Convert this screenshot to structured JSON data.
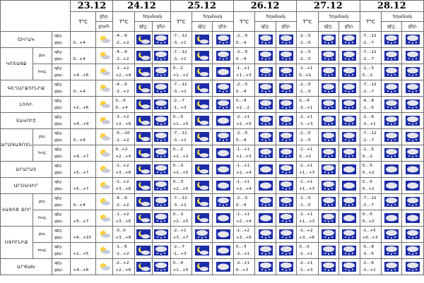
{
  "header": {
    "dates": [
      "23.12",
      "24.12",
      "25.12",
      "26.12",
      "27.12",
      "28.12"
    ],
    "temp_label": "T°C",
    "day_label": "ցեր.",
    "prec_label": "եղանակ",
    "night_label": "գիշ.",
    "col_prec_label": "լրահ."
  },
  "colors": {
    "border": "#6e6e6e",
    "icon_bg": "#1c2ca8",
    "moon": "#f2e24a",
    "sun": "#ffcf33",
    "cloud": "#e6e6ec"
  },
  "regions": [
    {
      "name": "ՇԻՐԱԿ",
      "rows": [
        {
          "sub": "",
          "pp": [
            "գիշ.",
            "ցեր."
          ],
          "d23": "0...+4",
          "i23": "sun-cloud",
          "t": [
            [
              "-4...-9",
              "-2...+2"
            ],
            [
              "-7...-12",
              "-3...+1"
            ],
            [
              "-2...-5",
              "0...-4"
            ],
            [
              "-2...-5",
              "-1...-5"
            ],
            [
              "-7...-12",
              "-2...-7"
            ]
          ],
          "i": [
            [
              "moon-cloud",
              "cloud-snow"
            ],
            [
              "moon-cloud",
              "cloud-snow"
            ],
            [
              "cloud-snow",
              "cloud-snow"
            ],
            [
              "cloud-snow",
              "cloud-snow"
            ],
            [
              "cloud-snow",
              "cloud-snow"
            ]
          ]
        }
      ]
    },
    {
      "name": "ԿՈՏԱՅՔ",
      "rows": [
        {
          "sub": "լեռ.",
          "pp": [
            "գիշ.",
            "ցեր."
          ],
          "d23": "0...+4",
          "i23": "sun-cloud",
          "t": [
            [
              "-4...-9",
              "-2...+2"
            ],
            [
              "-7...-12",
              "-3...+1"
            ],
            [
              "-2...-5",
              "0...-4"
            ],
            [
              "-2...-5",
              "-1...-5"
            ],
            [
              "-7...-12",
              "-2...-7"
            ]
          ],
          "i": [
            [
              "moon-cloud",
              "cloud-snow"
            ],
            [
              "moon-cloud",
              "cloud-snow"
            ],
            [
              "cloud-snow",
              "cloud-snow"
            ],
            [
              "cloud-snow",
              "cloud-snow"
            ],
            [
              "cloud-snow",
              "cloud-snow"
            ]
          ]
        },
        {
          "sub": "հով.",
          "pp": [
            "գիշ.",
            "ցեր."
          ],
          "d23": "+4...+6",
          "i23": "sun-cloud",
          "t": [
            [
              "-1...+2",
              "+2...+4"
            ],
            [
              "0...-2",
              "+1...+2"
            ],
            [
              "-1...+1",
              "+1...+3"
            ],
            [
              "-1...+1",
              "0...+1"
            ],
            [
              "-1...-5",
              "0...-2"
            ]
          ],
          "i": [
            [
              "moon-cloud",
              "cloud-snow"
            ],
            [
              "moon-cloud",
              "cloud"
            ],
            [
              "cloud-snow",
              "cloud-snow"
            ],
            [
              "cloud-snow",
              "cloud-snow"
            ],
            [
              "cloud-snow",
              "cloud-snow"
            ]
          ]
        }
      ]
    },
    {
      "name": "ԳԵՂԱՐՔՈՒՆԻՔ",
      "rows": [
        {
          "sub": "",
          "pp": [
            "գիշ.",
            "ցեր."
          ],
          "d23": "0...+4",
          "i23": "sun-cloud",
          "t": [
            [
              "-4...-9",
              "-2...+2"
            ],
            [
              "-7...-12",
              "-3...+1"
            ],
            [
              "-2...-5",
              "0...-4"
            ],
            [
              "-2...-5",
              "-1...-5"
            ],
            [
              "-7...-12",
              "-2...-7"
            ]
          ],
          "i": [
            [
              "moon-cloud",
              "cloud-snow"
            ],
            [
              "moon-cloud",
              "cloud-snow"
            ],
            [
              "cloud-snow",
              "cloud-snow"
            ],
            [
              "cloud-snow",
              "cloud-snow"
            ],
            [
              "cloud-snow",
              "cloud-snow"
            ]
          ]
        }
      ]
    },
    {
      "name": "ԼՈՌԻ",
      "rows": [
        {
          "sub": "",
          "pp": [
            "գիշ.",
            "ցեր."
          ],
          "d23": "+2...+6",
          "i23": "sun-cloud",
          "t": [
            [
              "0...-5",
              "0...+4"
            ],
            [
              "-2...-7",
              "-1...+3"
            ],
            [
              "0...-4",
              "+2...-2"
            ],
            [
              "0...-4",
              "-3...+1"
            ],
            [
              "-4...-8",
              "-1...-5"
            ]
          ],
          "i": [
            [
              "moon-cloud",
              "cloud-snow"
            ],
            [
              "moon-cloud",
              "cloud-snow"
            ],
            [
              "cloud-snow",
              "cloud-snow"
            ],
            [
              "cloud-snow",
              "cloud-snow"
            ],
            [
              "cloud-snow",
              "cloud-snow"
            ]
          ]
        }
      ]
    },
    {
      "name": "ՏԱՎՈՒՇ",
      "rows": [
        {
          "sub": "",
          "pp": [
            "գիշ.",
            "ցեր."
          ],
          "d23": "+4...+9",
          "i23": "sun-cloud",
          "t": [
            [
              "-3...+2",
              "+2...+6"
            ],
            [
              "0...-5",
              "+1...+5"
            ],
            [
              "-2...+1",
              "+2...+5"
            ],
            [
              "-2...+1",
              "-1...+3"
            ],
            [
              "-2...-6",
              "-3...+1"
            ]
          ],
          "i": [
            [
              "moon-cloud",
              "cloud-snow"
            ],
            [
              "moon-cloud",
              "cloud"
            ],
            [
              "cloud-snow",
              "cloud-snow"
            ],
            [
              "cloud-snow",
              "cloud-snow"
            ],
            [
              "cloud-snow",
              "cloud-snow"
            ]
          ]
        }
      ]
    },
    {
      "name": "ԱՐԱԳԱՑՈՏՆ",
      "rows": [
        {
          "sub": "լեռ.",
          "pp": [
            "գիշ.",
            "ցեր."
          ],
          "d23": "0...+4",
          "i23": "sun-cloud",
          "t": [
            [
              "-5...-10",
              "-2...+2"
            ],
            [
              "-7...-12",
              "-3...+1"
            ],
            [
              "-2...-5",
              "0...-4"
            ],
            [
              "-2...-5",
              "-1...-5"
            ],
            [
              "-7...-12",
              "-2...-7"
            ]
          ],
          "i": [
            [
              "moon-cloud",
              "cloud-snow"
            ],
            [
              "moon-cloud",
              "cloud-snow"
            ],
            [
              "cloud-snow",
              "cloud-snow"
            ],
            [
              "cloud-snow",
              "cloud-snow"
            ],
            [
              "cloud-snow",
              "cloud-snow"
            ]
          ]
        },
        {
          "sub": "հով.",
          "pp": [
            "գիշ.",
            "ցեր."
          ],
          "d23": "+4...+7",
          "i23": "sun-cloud",
          "t": [
            [
              "0...+2",
              "+2...+4"
            ],
            [
              "0...-2",
              "+1...+2"
            ],
            [
              "-1...+1",
              "+1...+3"
            ],
            [
              "-1...+1",
              "0...+1"
            ],
            [
              "-1...-5",
              "0...-2"
            ]
          ],
          "i": [
            [
              "moon-cloud",
              "cloud-snow"
            ],
            [
              "moon-cloud",
              "cloud"
            ],
            [
              "cloud-snow",
              "cloud-snow"
            ],
            [
              "cloud-snow",
              "cloud-snow"
            ],
            [
              "cloud-snow",
              "cloud-snow"
            ]
          ]
        }
      ]
    },
    {
      "name": "ԱՐԱՐԱՏ",
      "rows": [
        {
          "sub": "",
          "pp": [
            "գիշ.",
            "ցեր."
          ],
          "d23": "+5...+7",
          "i23": "sun-cloud",
          "t": [
            [
              "-1...+2",
              "+3...+6"
            ],
            [
              "0...-3",
              "+2...+5"
            ],
            [
              "-1...+1",
              "+2...+4"
            ],
            [
              "-1...+1",
              "+1...+3"
            ],
            [
              "0...-5",
              "0...+2"
            ]
          ],
          "i": [
            [
              "moon-cloud",
              "cloud-snow"
            ],
            [
              "moon-cloud",
              "cloud"
            ],
            [
              "cloud",
              "cloud-snow"
            ],
            [
              "cloud-snow",
              "cloud"
            ],
            [
              "cloud",
              "cloud"
            ]
          ]
        }
      ]
    },
    {
      "name": "ԱՐՄԱՎԻՐ",
      "rows": [
        {
          "sub": "",
          "pp": [
            "գիշ.",
            "ցեր."
          ],
          "d23": "+5...+7",
          "i23": "sun-cloud",
          "t": [
            [
              "-1...+2",
              "+3...+6"
            ],
            [
              "0...-3",
              "+2...+5"
            ],
            [
              "-1...+1",
              "+2...+4"
            ],
            [
              "-1...+1",
              "+1...+3"
            ],
            [
              "0...-5",
              "0...+2"
            ]
          ],
          "i": [
            [
              "moon-cloud",
              "cloud-snow"
            ],
            [
              "moon-cloud",
              "cloud"
            ],
            [
              "cloud",
              "cloud-snow"
            ],
            [
              "cloud-snow",
              "cloud"
            ],
            [
              "cloud",
              "cloud"
            ]
          ]
        }
      ]
    },
    {
      "name": "ՎԱՅՈՑ ՁՈՐ",
      "rows": [
        {
          "sub": "լեռ.",
          "pp": [
            "գիշ.",
            "ցեր."
          ],
          "d23": "0...+4",
          "i23": "sun-cloud",
          "t": [
            [
              "-4...-9",
              "-2...+2"
            ],
            [
              "-7...-12",
              "-3...+1"
            ],
            [
              "-2...-5",
              "0...-4"
            ],
            [
              "-2...-5",
              "-1...-5"
            ],
            [
              "-7...-12",
              "-2...-7"
            ]
          ],
          "i": [
            [
              "moon-cloud",
              "cloud-snow"
            ],
            [
              "moon-cloud",
              "cloud-snow"
            ],
            [
              "cloud-snow",
              "cloud-snow"
            ],
            [
              "cloud-snow",
              "cloud-snow"
            ],
            [
              "cloud-snow",
              "cloud-snow"
            ]
          ]
        },
        {
          "sub": "հով.",
          "pp": [
            "գիշ.",
            "ցեր."
          ],
          "d23": "+5...+7",
          "i23": "sun-cloud",
          "t": [
            [
              "-1...+2",
              "+3...+6"
            ],
            [
              "0...-3",
              "+2...+5"
            ],
            [
              "-1...+1",
              "+2...+4"
            ],
            [
              "-1...+1",
              "+1...+3"
            ],
            [
              "0...-5",
              "0...+2"
            ]
          ],
          "i": [
            [
              "moon-cloud",
              "cloud-snow"
            ],
            [
              "moon-cloud",
              "cloud"
            ],
            [
              "cloud",
              "cloud-snow"
            ],
            [
              "cloud-snow",
              "cloud"
            ],
            [
              "cloud",
              "cloud"
            ]
          ]
        }
      ]
    },
    {
      "name": "ՍՅՈՒՆԻՔ",
      "rows": [
        {
          "sub": "լեռ.",
          "pp": [
            "գիշ.",
            "ցեր."
          ],
          "d23": "+6...+10",
          "i23": "sun-cloud",
          "t": [
            [
              "-3...0",
              "+3...+8"
            ],
            [
              "-2...+1",
              "+3...+7"
            ],
            [
              "-1...+2",
              "+3...+6"
            ],
            [
              "-1...+2",
              "+3...+6"
            ],
            [
              "-1...+5",
              "+0...+3"
            ]
          ],
          "i": [
            [
              "moon-cloud",
              "cloud-snow"
            ],
            [
              "cloud-snow",
              "cloud"
            ],
            [
              "cloud-snow",
              "cloud-snow"
            ],
            [
              "cloud-snow",
              "cloud-snow"
            ],
            [
              "cloud-snow",
              "cloud-snow"
            ]
          ]
        },
        {
          "sub": "հով.",
          "pp": [
            "գիշ.",
            "ցեր."
          ],
          "d23": "+1...+5",
          "i23": "sun-cloud",
          "t": [
            [
              "-1...-6",
              "-2...+2"
            ],
            [
              "-2...-7",
              "-1...+3"
            ],
            [
              "0...-3",
              "-2...+1"
            ],
            [
              "0...-3",
              "-2...+1"
            ],
            [
              "-5...-8",
              "-3...-5"
            ]
          ],
          "i": [
            [
              "moon-cloud",
              "cloud-snow"
            ],
            [
              "moon-cloud",
              "cloud"
            ],
            [
              "cloud-snow",
              "cloud-snow"
            ],
            [
              "cloud-snow",
              "cloud-snow"
            ],
            [
              "cloud-snow",
              "cloud-snow"
            ]
          ]
        }
      ]
    },
    {
      "name": "ԱՐՑԱԽ",
      "rows": [
        {
          "sub": "",
          "pp": [
            "գիշ.",
            "ցեր."
          ],
          "d23": "+4...+8",
          "i23": "sun-cloud",
          "t": [
            [
              "-2...+2",
              "+2...+6"
            ],
            [
              "0...-4",
              "+1...+5"
            ],
            [
              "-2...+1",
              "0...+3"
            ],
            [
              "-2...+1",
              "-1...+3"
            ],
            [
              "-2...-6",
              "-3...+1"
            ]
          ],
          "i": [
            [
              "moon-cloud",
              "cloud-snow"
            ],
            [
              "moon-cloud",
              "cloud"
            ],
            [
              "cloud-snow",
              "cloud-snow"
            ],
            [
              "cloud-snow",
              "cloud-snow"
            ],
            [
              "cloud-snow",
              "cloud-snow"
            ]
          ]
        }
      ]
    }
  ]
}
